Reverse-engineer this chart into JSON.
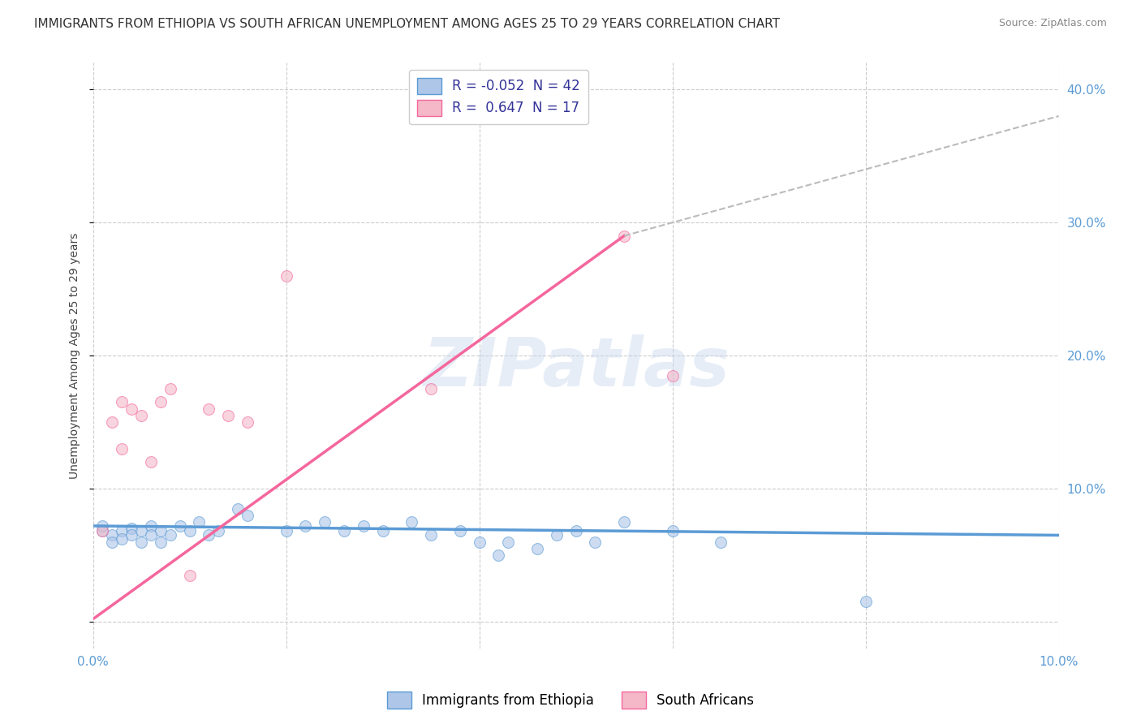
{
  "title": "IMMIGRANTS FROM ETHIOPIA VS SOUTH AFRICAN UNEMPLOYMENT AMONG AGES 25 TO 29 YEARS CORRELATION CHART",
  "source": "Source: ZipAtlas.com",
  "ylabel": "Unemployment Among Ages 25 to 29 years",
  "xlim": [
    0.0,
    0.1
  ],
  "ylim": [
    -0.02,
    0.42
  ],
  "xticks": [
    0.0,
    0.02,
    0.04,
    0.06,
    0.08,
    0.1
  ],
  "xticklabels": [
    "0.0%",
    "",
    "",
    "",
    "",
    "10.0%"
  ],
  "yticks": [
    0.0,
    0.1,
    0.2,
    0.3,
    0.4
  ],
  "yticklabels": [
    "",
    "10.0%",
    "20.0%",
    "30.0%",
    "40.0%"
  ],
  "legend_entries": [
    {
      "label": "R = -0.052  N = 42",
      "facecolor": "#aec6e8",
      "edgecolor": "#5b9bd5"
    },
    {
      "label": "R =  0.647  N = 17",
      "facecolor": "#f4b8c8",
      "edgecolor": "#f4679d"
    }
  ],
  "blue_scatter": [
    [
      0.001,
      0.068
    ],
    [
      0.001,
      0.072
    ],
    [
      0.002,
      0.065
    ],
    [
      0.002,
      0.06
    ],
    [
      0.003,
      0.068
    ],
    [
      0.003,
      0.062
    ],
    [
      0.004,
      0.07
    ],
    [
      0.004,
      0.065
    ],
    [
      0.005,
      0.068
    ],
    [
      0.005,
      0.06
    ],
    [
      0.006,
      0.072
    ],
    [
      0.006,
      0.065
    ],
    [
      0.007,
      0.068
    ],
    [
      0.007,
      0.06
    ],
    [
      0.008,
      0.065
    ],
    [
      0.009,
      0.072
    ],
    [
      0.01,
      0.068
    ],
    [
      0.011,
      0.075
    ],
    [
      0.012,
      0.065
    ],
    [
      0.013,
      0.068
    ],
    [
      0.015,
      0.085
    ],
    [
      0.016,
      0.08
    ],
    [
      0.02,
      0.068
    ],
    [
      0.022,
      0.072
    ],
    [
      0.024,
      0.075
    ],
    [
      0.026,
      0.068
    ],
    [
      0.028,
      0.072
    ],
    [
      0.03,
      0.068
    ],
    [
      0.033,
      0.075
    ],
    [
      0.035,
      0.065
    ],
    [
      0.038,
      0.068
    ],
    [
      0.04,
      0.06
    ],
    [
      0.042,
      0.05
    ],
    [
      0.043,
      0.06
    ],
    [
      0.046,
      0.055
    ],
    [
      0.048,
      0.065
    ],
    [
      0.05,
      0.068
    ],
    [
      0.052,
      0.06
    ],
    [
      0.055,
      0.075
    ],
    [
      0.06,
      0.068
    ],
    [
      0.065,
      0.06
    ],
    [
      0.08,
      0.015
    ]
  ],
  "pink_scatter": [
    [
      0.001,
      0.068
    ],
    [
      0.002,
      0.15
    ],
    [
      0.003,
      0.165
    ],
    [
      0.003,
      0.13
    ],
    [
      0.004,
      0.16
    ],
    [
      0.005,
      0.155
    ],
    [
      0.006,
      0.12
    ],
    [
      0.007,
      0.165
    ],
    [
      0.008,
      0.175
    ],
    [
      0.01,
      0.035
    ],
    [
      0.012,
      0.16
    ],
    [
      0.014,
      0.155
    ],
    [
      0.016,
      0.15
    ],
    [
      0.02,
      0.26
    ],
    [
      0.035,
      0.175
    ],
    [
      0.055,
      0.29
    ],
    [
      0.06,
      0.185
    ]
  ],
  "blue_line": {
    "x": [
      0.0,
      0.1
    ],
    "y": [
      0.072,
      0.065
    ]
  },
  "pink_line": {
    "x": [
      0.0,
      0.055
    ],
    "y": [
      0.002,
      0.29
    ]
  },
  "pink_dashed_line": {
    "x": [
      0.055,
      0.1
    ],
    "y": [
      0.29,
      0.38
    ]
  },
  "scatter_size_blue": 100,
  "scatter_size_pink": 100,
  "scatter_alpha": 0.6,
  "blue_color": "#5b9bd5",
  "pink_color": "#f4679d",
  "blue_fill": "#aec6e8",
  "pink_fill": "#f4b8c8",
  "watermark": "ZIPatlas",
  "grid_color": "#cccccc",
  "background_color": "#ffffff",
  "title_fontsize": 11,
  "axis_label_fontsize": 10,
  "tick_fontsize": 11
}
